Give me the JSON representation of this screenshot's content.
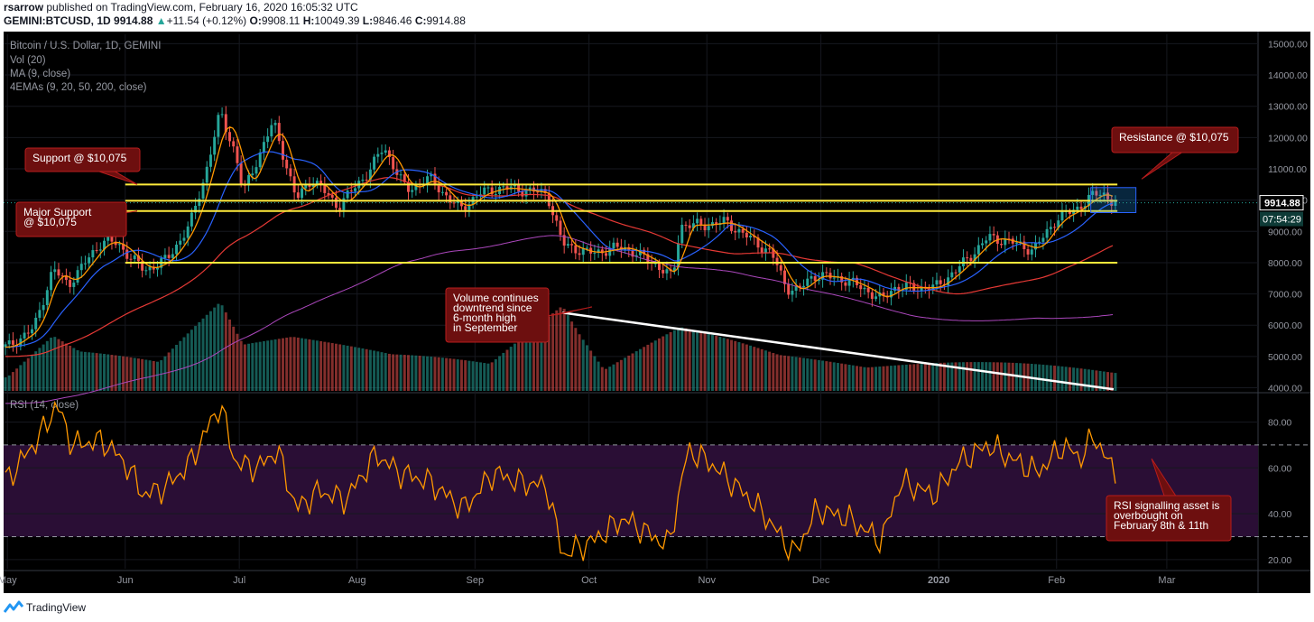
{
  "header": {
    "author": "rsarrow",
    "published_text": "published on TradingView.com, February 16, 2020 16:05:32 UTC",
    "symbol": "GEMINI:BTCUSD, 1D",
    "last": "9914.88",
    "change_arrow": "▲",
    "change": "+11.54 (+0.12%)",
    "o_label": "O:",
    "o_val": "9908.11",
    "h_label": "H:",
    "h_val": "10049.39",
    "l_label": "L:",
    "l_val": "9846.46",
    "c_label": "C:",
    "c_val": "9914.88"
  },
  "footer": {
    "brand": "TradingView",
    "logo_icon": "tradingview-logo-icon"
  },
  "colors": {
    "background": "#000000",
    "up": "#26a69a",
    "down": "#ef5350",
    "support_lines": "#ffeb3b",
    "ma9": "#ff9800",
    "ema50": "#2962ff",
    "ema200": "#ab47bc",
    "ema100": "#e53935",
    "rsi": "#ff9800",
    "rsi_band": "#2a0e35",
    "annotation_bg": "#6d0f0f",
    "annotation_border": "#b71c1c"
  },
  "chart_data": [
    {
      "type": "candlestick",
      "title": "Bitcoin / U.S. Dollar, 1D, GEMINI",
      "indicators": [
        "Vol (20)",
        "MA (9, close)",
        "4EMAs (9, 20, 50, 200, close)"
      ],
      "x_tick_labels": [
        "May",
        "Jun",
        "Jul",
        "Aug",
        "Sep",
        "Oct",
        "Nov",
        "Dec",
        "2020",
        "Feb",
        "Mar"
      ],
      "y_tick_labels": [
        "15000.00",
        "14000.00",
        "13000.00",
        "12000.00",
        "11000.00",
        "10000.00",
        "9000.00",
        "8000.00",
        "7000.00",
        "6000.00",
        "5000.00",
        "4000.00"
      ],
      "ylim": [
        3900,
        15300
      ],
      "last_price_label": "9914.88",
      "countdown_label": "07:54:29",
      "price_path": [
        [
          "2019-05-01",
          5300
        ],
        [
          "2019-05-08",
          5900
        ],
        [
          "2019-05-13",
          7800
        ],
        [
          "2019-05-17",
          7300
        ],
        [
          "2019-05-26",
          8700
        ],
        [
          "2019-05-30",
          8600
        ],
        [
          "2019-06-06",
          7750
        ],
        [
          "2019-06-12",
          8100
        ],
        [
          "2019-06-18",
          9200
        ],
        [
          "2019-06-22",
          10800
        ],
        [
          "2019-06-26",
          12800
        ],
        [
          "2019-06-30",
          11500
        ],
        [
          "2019-07-02",
          10200
        ],
        [
          "2019-07-05",
          11100
        ],
        [
          "2019-07-10",
          12500
        ],
        [
          "2019-07-12",
          11700
        ],
        [
          "2019-07-16",
          10000
        ],
        [
          "2019-07-20",
          10700
        ],
        [
          "2019-07-27",
          9800
        ],
        [
          "2019-08-04",
          10900
        ],
        [
          "2019-08-08",
          11700
        ],
        [
          "2019-08-14",
          10300
        ],
        [
          "2019-08-20",
          10700
        ],
        [
          "2019-08-28",
          9700
        ],
        [
          "2019-09-02",
          10200
        ],
        [
          "2019-09-08",
          10400
        ],
        [
          "2019-09-15",
          10300
        ],
        [
          "2019-09-20",
          10200
        ],
        [
          "2019-09-24",
          8600
        ],
        [
          "2019-10-01",
          8300
        ],
        [
          "2019-10-10",
          8500
        ],
        [
          "2019-10-18",
          8000
        ],
        [
          "2019-10-23",
          7500
        ],
        [
          "2019-10-25",
          9200
        ],
        [
          "2019-10-31",
          9200
        ],
        [
          "2019-11-06",
          9300
        ],
        [
          "2019-11-12",
          8800
        ],
        [
          "2019-11-18",
          8300
        ],
        [
          "2019-11-22",
          7200
        ],
        [
          "2019-11-25",
          7100
        ],
        [
          "2019-11-29",
          7600
        ],
        [
          "2019-12-06",
          7500
        ],
        [
          "2019-12-12",
          7200
        ],
        [
          "2019-12-17",
          6800
        ],
        [
          "2019-12-20",
          7200
        ],
        [
          "2019-12-31",
          7200
        ],
        [
          "2020-01-06",
          7800
        ],
        [
          "2020-01-14",
          8800
        ],
        [
          "2020-01-19",
          8700
        ],
        [
          "2020-01-26",
          8400
        ],
        [
          "2020-02-01",
          9400
        ],
        [
          "2020-02-06",
          9700
        ],
        [
          "2020-02-10",
          10100
        ],
        [
          "2020-02-13",
          10250
        ],
        [
          "2020-02-16",
          9915
        ]
      ],
      "horizontal_levels": [
        10500,
        9980,
        9650,
        8000
      ],
      "volume_path": [
        [
          "2019-05-01",
          0.15
        ],
        [
          "2019-05-13",
          0.55
        ],
        [
          "2019-05-20",
          0.35
        ],
        [
          "2019-06-10",
          0.2
        ],
        [
          "2019-06-26",
          0.9
        ],
        [
          "2019-07-02",
          0.45
        ],
        [
          "2019-07-15",
          0.6
        ],
        [
          "2019-08-10",
          0.3
        ],
        [
          "2019-09-05",
          0.2
        ],
        [
          "2019-09-24",
          0.92
        ],
        [
          "2019-10-05",
          0.2
        ],
        [
          "2019-10-25",
          0.6
        ],
        [
          "2019-11-20",
          0.3
        ],
        [
          "2019-12-18",
          0.25
        ],
        [
          "2020-01-15",
          0.2
        ],
        [
          "2020-02-15",
          0.15
        ]
      ]
    },
    {
      "type": "line",
      "title": "RSI (14, close)",
      "y_tick_labels": [
        "80.00",
        "60.00",
        "40.00",
        "20.00"
      ],
      "ylim": [
        16,
        92
      ],
      "levels": [
        70,
        30
      ],
      "rsi_path": [
        [
          "2019-05-01",
          55
        ],
        [
          "2019-05-10",
          75
        ],
        [
          "2019-05-14",
          88
        ],
        [
          "2019-05-18",
          70
        ],
        [
          "2019-05-26",
          72
        ],
        [
          "2019-06-01",
          62
        ],
        [
          "2019-06-06",
          48
        ],
        [
          "2019-06-12",
          52
        ],
        [
          "2019-06-18",
          62
        ],
        [
          "2019-06-26",
          88
        ],
        [
          "2019-06-30",
          62
        ],
        [
          "2019-07-06",
          60
        ],
        [
          "2019-07-11",
          68
        ],
        [
          "2019-07-16",
          42
        ],
        [
          "2019-07-22",
          50
        ],
        [
          "2019-07-29",
          46
        ],
        [
          "2019-08-06",
          66
        ],
        [
          "2019-08-12",
          58
        ],
        [
          "2019-08-20",
          54
        ],
        [
          "2019-08-29",
          42
        ],
        [
          "2019-09-06",
          58
        ],
        [
          "2019-09-12",
          54
        ],
        [
          "2019-09-20",
          52
        ],
        [
          "2019-09-24",
          22
        ],
        [
          "2019-10-02",
          28
        ],
        [
          "2019-10-10",
          38
        ],
        [
          "2019-10-22",
          26
        ],
        [
          "2019-10-27",
          68
        ],
        [
          "2019-11-02",
          62
        ],
        [
          "2019-11-10",
          50
        ],
        [
          "2019-11-16",
          40
        ],
        [
          "2019-11-24",
          22
        ],
        [
          "2019-11-30",
          42
        ],
        [
          "2019-12-08",
          38
        ],
        [
          "2019-12-17",
          28
        ],
        [
          "2019-12-22",
          54
        ],
        [
          "2019-12-31",
          48
        ],
        [
          "2020-01-06",
          62
        ],
        [
          "2020-01-14",
          70
        ],
        [
          "2020-01-20",
          64
        ],
        [
          "2020-01-27",
          58
        ],
        [
          "2020-02-03",
          70
        ],
        [
          "2020-02-07",
          64
        ],
        [
          "2020-02-11",
          74
        ],
        [
          "2020-02-16",
          58
        ]
      ]
    }
  ],
  "annotations": {
    "support": "Support @ $10,075",
    "major_support": "Major Support\n@ $10,075",
    "resistance": "Resistance @ $10,075",
    "volume": "Volume continues\ndowntrend since\n6-month high\nin September",
    "rsi": "RSI signalling asset is\noverbought on\nFebruary 8th & 11th"
  }
}
